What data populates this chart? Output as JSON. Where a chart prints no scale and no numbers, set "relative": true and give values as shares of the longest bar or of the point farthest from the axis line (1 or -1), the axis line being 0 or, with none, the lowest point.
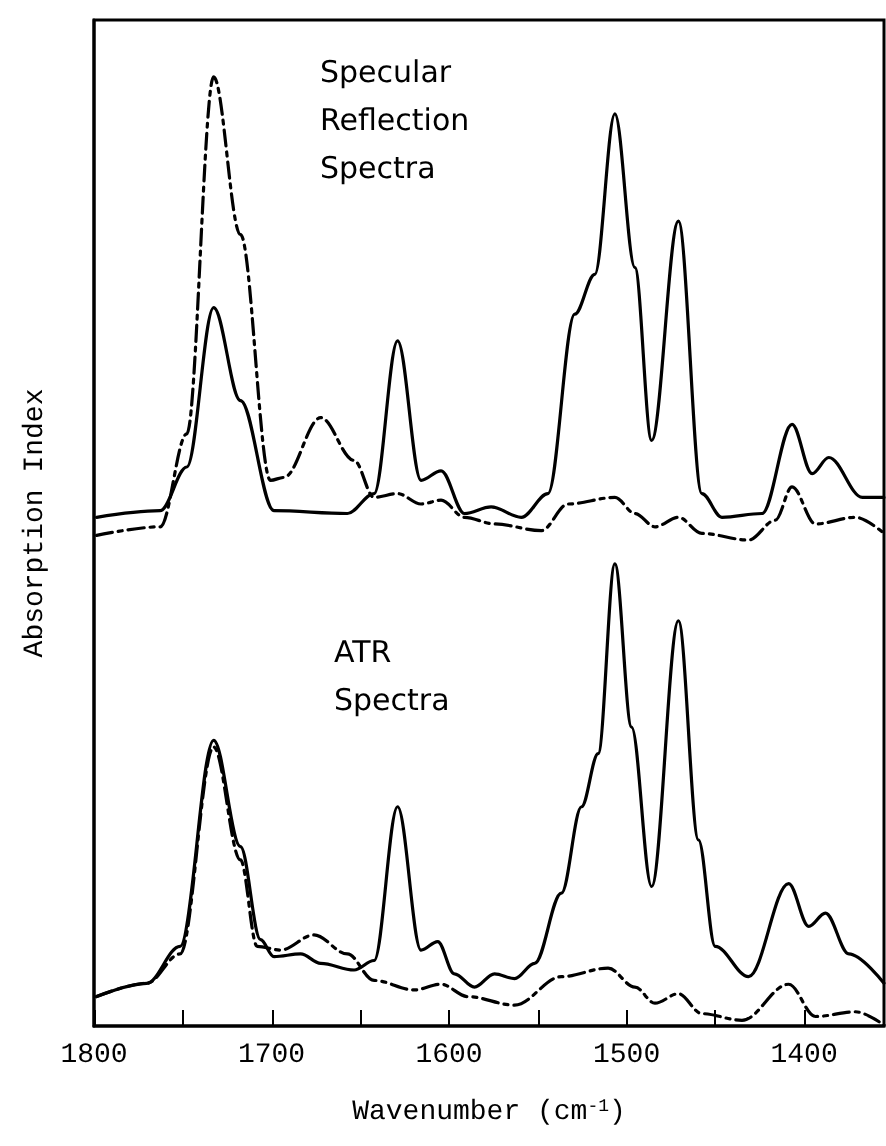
{
  "chart_data": {
    "type": "line",
    "relative": true,
    "xlabel": "Wavenumber (cm$^{-1}$)",
    "ylabel": "Absorption Index",
    "annotations": [
      "Specular\nReflection\nSpectra",
      "ATR\nSpectra"
    ],
    "xlim": [
      1800,
      1355
    ],
    "xticks": [
      1800,
      {
        "value": 1750,
        "label": null
      },
      1700,
      {
        "value": 1650,
        "label": null
      },
      1600,
      {
        "value": 1550,
        "label": null
      },
      1500,
      {
        "value": 1450,
        "label": null
      },
      1400
    ],
    "grid": false,
    "marker": "none",
    "series": [
      {
        "color": "#000000",
        "line_style": "solid",
        "x": [
          1798.5,
          1762.7,
          1747.7,
          1732.6,
          1717.5,
          1698.6,
          1657.3,
          1642.2,
          1629.0,
          1615.8,
          1604.5,
          1591.3,
          1576.3,
          1559.3,
          1544.3,
          1529.2,
          1517.9,
          1506.6,
          1495.3,
          1485.9,
          1470.8,
          1457.6,
          1446.3,
          1423.7,
          1406.8,
          1395.5,
          1386.1,
          1367.2,
          1355
        ],
        "values": [
          0.536,
          0.543,
          0.589,
          0.757,
          0.659,
          0.543,
          0.54,
          0.561,
          0.722,
          0.575,
          0.585,
          0.54,
          0.547,
          0.536,
          0.561,
          0.75,
          0.792,
          0.961,
          0.799,
          0.617,
          0.848,
          0.561,
          0.536,
          0.54,
          0.634,
          0.582,
          0.599,
          0.557,
          0.557
        ]
      },
      {
        "color": "#000000",
        "line_style": "dashed",
        "x": [
          1798.5,
          1762.7,
          1747.7,
          1732.6,
          1717.5,
          1700.6,
          1693.0,
          1672.3,
          1653.5,
          1642.2,
          1629.0,
          1615.8,
          1604.5,
          1591.3,
          1574.4,
          1548.0,
          1533.0,
          1506.6,
          1495.3,
          1484.0,
          1470.8,
          1457.6,
          1431.3,
          1416.2,
          1406.8,
          1393.6,
          1371.0,
          1355
        ],
        "values": [
          0.517,
          0.526,
          0.624,
          1.0,
          0.834,
          0.575,
          0.578,
          0.641,
          0.596,
          0.557,
          0.561,
          0.55,
          0.554,
          0.536,
          0.529,
          0.522,
          0.55,
          0.557,
          0.54,
          0.526,
          0.536,
          0.519,
          0.512,
          0.533,
          0.568,
          0.529,
          0.536,
          0.519
        ]
      },
      {
        "color": "#000000",
        "line_style": "solid",
        "x": [
          1798.5,
          1770.3,
          1751.5,
          1732.6,
          1717.5,
          1706.2,
          1698.6,
          1683.6,
          1672.3,
          1653.5,
          1642.2,
          1629.0,
          1615.8,
          1606.4,
          1597.0,
          1585.7,
          1574.4,
          1563.1,
          1551.8,
          1536.7,
          1525.4,
          1516.0,
          1506.6,
          1497.2,
          1485.9,
          1470.8,
          1459.5,
          1450.1,
          1431.3,
          1408.7,
          1397.4,
          1388.0,
          1374.8,
          1355
        ],
        "values": [
          0.031,
          0.045,
          0.084,
          0.301,
          0.189,
          0.091,
          0.073,
          0.076,
          0.066,
          0.059,
          0.069,
          0.231,
          0.08,
          0.089,
          0.055,
          0.041,
          0.055,
          0.05,
          0.066,
          0.14,
          0.231,
          0.287,
          0.487,
          0.315,
          0.147,
          0.427,
          0.196,
          0.084,
          0.052,
          0.15,
          0.105,
          0.119,
          0.076,
          0.045
        ]
      },
      {
        "color": "#000000",
        "line_style": "dashed",
        "x": [
          1798.5,
          1770.3,
          1751.5,
          1732.6,
          1717.5,
          1708.1,
          1694.9,
          1676.1,
          1657.3,
          1642.2,
          1619.6,
          1604.5,
          1589.5,
          1563.1,
          1536.7,
          1510.4,
          1495.3,
          1484.0,
          1470.8,
          1457.6,
          1435.0,
          1408.7,
          1393.6,
          1371.0,
          1355
        ],
        "values": [
          0.031,
          0.045,
          0.076,
          0.294,
          0.175,
          0.084,
          0.08,
          0.096,
          0.076,
          0.048,
          0.038,
          0.044,
          0.031,
          0.022,
          0.052,
          0.061,
          0.041,
          0.024,
          0.034,
          0.013,
          0.006,
          0.044,
          0.01,
          0.015,
          0.001
        ]
      }
    ]
  }
}
